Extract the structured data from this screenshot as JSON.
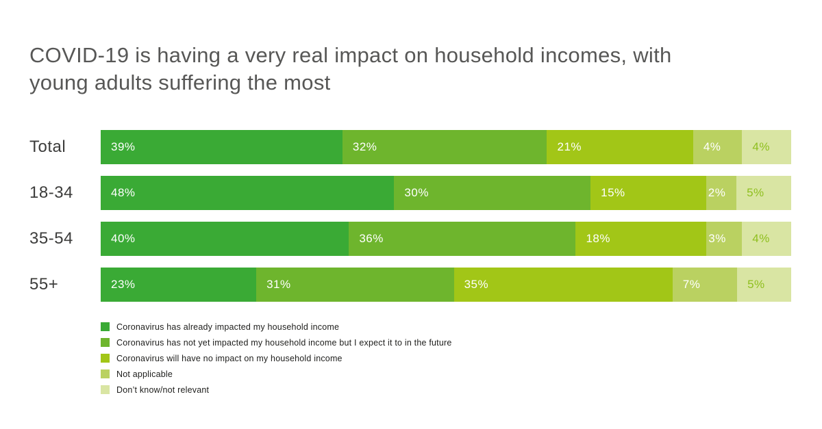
{
  "title": {
    "line1": "COVID-19 is having a very real impact on household incomes, with",
    "line2": "young adults suffering the most"
  },
  "chart_data": {
    "type": "bar",
    "variant": "horizontal-stacked",
    "title": "COVID-19 is having a very real impact on household incomes, with young adults suffering the most",
    "categories": [
      "Total",
      "18-34",
      "35-54",
      "55+"
    ],
    "series": [
      {
        "name": "Coronavirus has already impacted my household income",
        "color": "#3aaa35",
        "values": [
          39,
          48,
          40,
          23
        ]
      },
      {
        "name": "Coronavirus has not yet impacted my household income but I expect it to in the future",
        "color": "#6eb52d",
        "values": [
          32,
          30,
          36,
          31
        ]
      },
      {
        "name": "Coronavirus will have no impact on my household income",
        "color": "#a2c617",
        "values": [
          21,
          15,
          18,
          35
        ]
      },
      {
        "name": "Not applicable",
        "color": "#bad161",
        "values": [
          4,
          2,
          3,
          7
        ]
      },
      {
        "name": "Don’t know/not relevant",
        "color": "#d9e5a3",
        "values": [
          4,
          5,
          4,
          5
        ]
      }
    ],
    "value_suffix": "%",
    "data_label_color": "#ffffff",
    "data_label_color_last_segment": "#8fbf1f",
    "xlim": [
      0,
      100
    ],
    "grid": false,
    "legend_position": "bottom-left",
    "title_color": "#575756",
    "category_label_color": "#3c3c3b"
  }
}
